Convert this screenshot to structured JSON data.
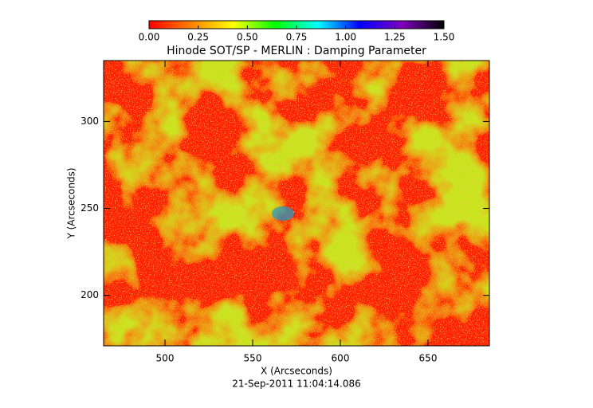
{
  "chart_data": {
    "type": "heatmap",
    "title": "Hinode SOT/SP - MERLIN : Damping Parameter",
    "x_label": "X (Arcseconds)",
    "y_label": "Y (Arcseconds)",
    "subtitle": "21-Sep-2011 11:04:14.086",
    "xlim": [
      465,
      685
    ],
    "xticks": [
      500,
      550,
      600,
      650
    ],
    "ylim": [
      171,
      335
    ],
    "yticks": [
      200,
      250,
      300
    ],
    "colorbar": {
      "lim": [
        0,
        1.5
      ],
      "ticks": [
        {
          "value": 0,
          "label": "0.00"
        },
        {
          "value": 0.25,
          "label": "0.25"
        },
        {
          "value": 0.5,
          "label": "0.50"
        },
        {
          "value": 0.75,
          "label": "0.75"
        },
        {
          "value": 1,
          "label": "1.00"
        },
        {
          "value": 1.25,
          "label": "1.25"
        },
        {
          "value": 1.5,
          "label": "1.50"
        }
      ],
      "colors": [
        "#ff0000",
        "#ff8000",
        "#ffff00",
        "#00ff00",
        "#00ffff",
        "#0000ff",
        "#8000c0",
        "#000000"
      ]
    }
  }
}
